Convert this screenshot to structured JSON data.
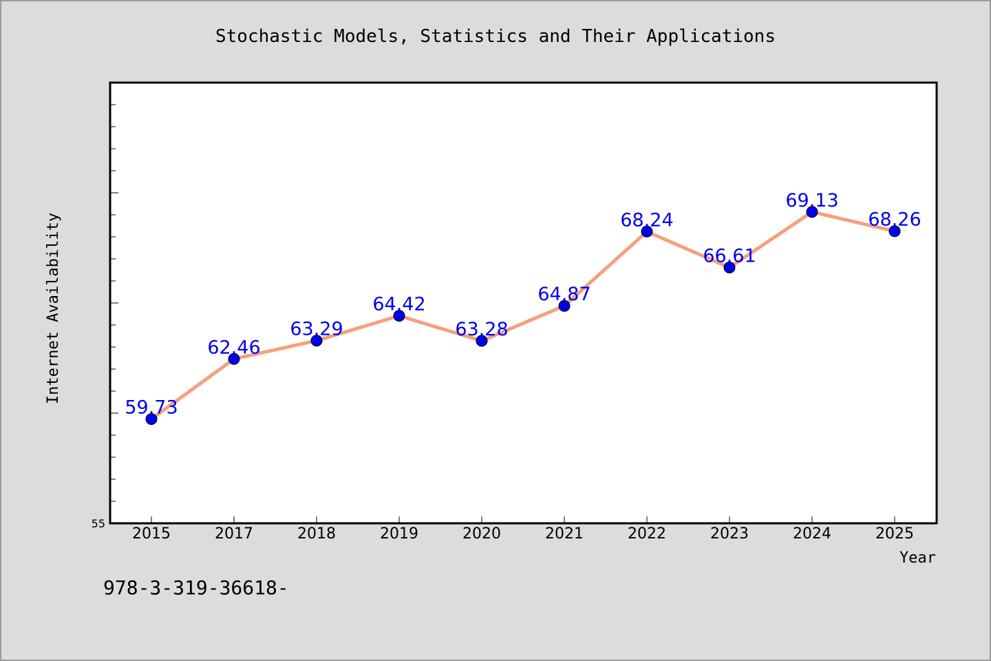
{
  "chart_data": {
    "type": "line",
    "title": "Stochastic Models, Statistics and Their Applications",
    "xlabel": "Year",
    "ylabel": "Internet Availability",
    "categories": [
      "2015",
      "2017",
      "2018",
      "2019",
      "2020",
      "2021",
      "2022",
      "2023",
      "2024",
      "2025"
    ],
    "series": [
      {
        "values": [
          59.73,
          62.46,
          63.29,
          64.42,
          63.28,
          64.87,
          68.24,
          66.61,
          69.13,
          68.26
        ]
      }
    ],
    "data_labels": [
      "59.73",
      "62.46",
      "63.29",
      "64.42",
      "63.28",
      "64.87",
      "68.24",
      "66.61",
      "69.13",
      "68.26"
    ],
    "ylim": [
      55,
      75
    ],
    "y_tick_labels": [
      "55"
    ],
    "grid": false,
    "colors": {
      "line": "#f4a07e",
      "marker": "#0000ee",
      "label": "#0000ee",
      "page_background": "#dcdcdc",
      "plot_background": "#ffffff"
    }
  },
  "footer": {
    "isbn_text": "978-3-319-36618-"
  }
}
